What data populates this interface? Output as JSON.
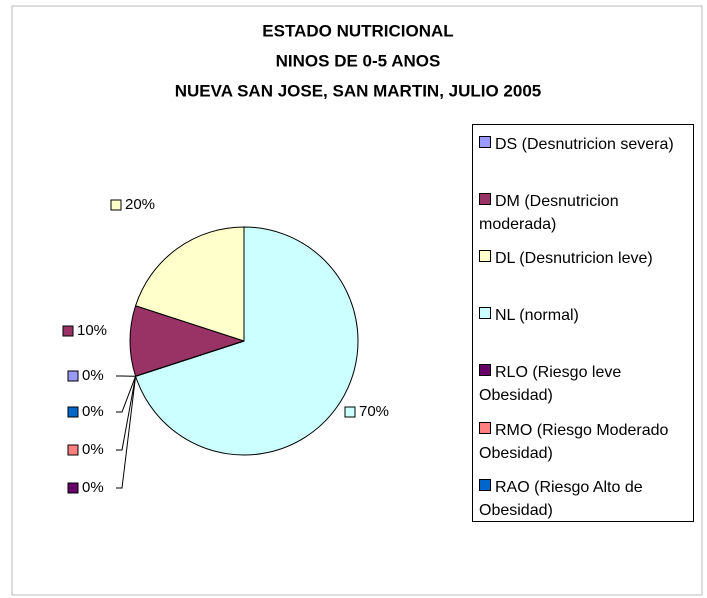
{
  "chart_data": {
    "type": "pie",
    "title": [
      "ESTADO NUTRICIONAL",
      "NINOS DE 0-5 ANOS",
      "NUEVA SAN JOSE, SAN MARTIN, JULIO  2005"
    ],
    "categories": [
      "DS (Desnutricion severa)",
      "DM (Desnutricion moderada)",
      "DL (Desnutricion leve)",
      "NL (normal)",
      "RLO (Riesgo leve Obesidad)",
      "RMO (Riesgo Moderado Obesidad)",
      "RAO (Riesgo Alto de Obesidad)"
    ],
    "values": [
      0,
      10,
      20,
      70,
      0,
      0,
      0
    ],
    "value_labels": [
      "0%",
      "10%",
      "20%",
      "70%",
      "0%",
      "0%",
      "0%"
    ],
    "colors": [
      "#9999ff",
      "#993366",
      "#ffffcc",
      "#ccffff",
      "#660066",
      "#ff8080",
      "#0066cc"
    ],
    "legend": "right"
  }
}
